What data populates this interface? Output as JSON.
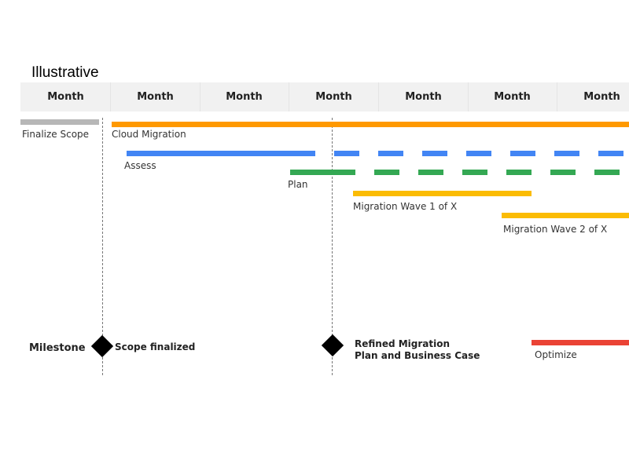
{
  "title": "Illustrative",
  "header": {
    "months": [
      "Month",
      "Month",
      "Month",
      "Month",
      "Month",
      "Month",
      "Month"
    ]
  },
  "tasks": [
    {
      "label": "Finalize Scope",
      "color": "#b7b7b7",
      "style": "solid"
    },
    {
      "label": "Cloud Migration",
      "color": "#ff9900",
      "style": "solid"
    },
    {
      "label": "Assess",
      "color": "#4285f4",
      "style": "solid-then-dashed"
    },
    {
      "label": "Plan",
      "color": "#34a853",
      "style": "dashed"
    },
    {
      "label": "Migration Wave 1 of X",
      "color": "#fbbc04",
      "style": "solid"
    },
    {
      "label": "Migration Wave 2 of X",
      "color": "#fbbc04",
      "style": "solid"
    },
    {
      "label": "Optimize",
      "color": "#ea4335",
      "style": "solid"
    }
  ],
  "milestones": {
    "row_label": "Milestone",
    "items": [
      {
        "label": "Scope finalized",
        "icon": "diamond-icon"
      },
      {
        "label_line1": "Refined Migration",
        "label_line2": "Plan and Business Case",
        "icon": "diamond-icon"
      }
    ]
  }
}
